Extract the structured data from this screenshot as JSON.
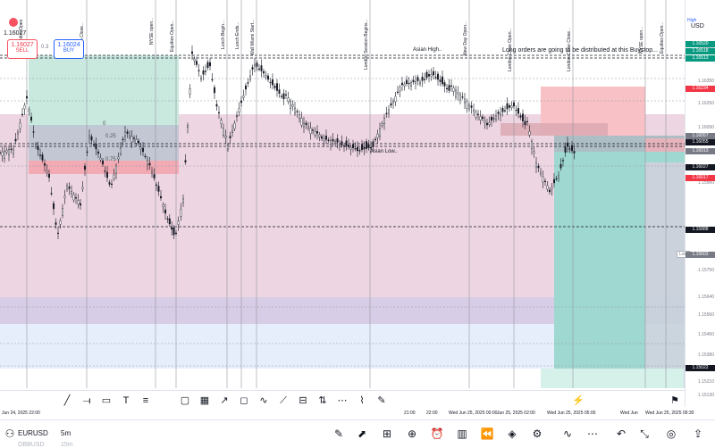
{
  "trade_widget": {
    "symbol_price": "1.16027",
    "sell_price": "1.16027",
    "sell_label": "SELL",
    "spread": "0.3",
    "buy_price": "1.16024",
    "buy_label": "BUY"
  },
  "price_axis": {
    "currency": "USD",
    "high_flag": "High",
    "low_flag": "Low",
    "ticks": [
      "1.16520",
      "1.16350",
      "1.16250",
      "1.16090",
      "1.15960",
      "1.15880",
      "1.15750",
      "1.15640",
      "1.15560",
      "1.15460",
      "1.15380",
      "1.15300",
      "1.15210",
      "1.15130"
    ],
    "tags": [
      {
        "value": "1.16520",
        "color": "#089981"
      },
      {
        "value": "1.16518",
        "color": "#089981"
      },
      {
        "value": "1.16513",
        "color": "#089981"
      },
      {
        "value": "1.16234",
        "color": "#f23645"
      },
      {
        "value": "1.16057",
        "color": "#787b86"
      },
      {
        "value": "1.16055",
        "color": "#131722"
      },
      {
        "value": "1.16027",
        "color": "#131722"
      },
      {
        "value": "1.16013",
        "color": "#787b86"
      },
      {
        "value": "1.16017",
        "color": "#f23645"
      },
      {
        "value": "1.15888",
        "color": "#131722"
      },
      {
        "value": "1.15603",
        "color": "#787b86"
      },
      {
        "value": "1.15022",
        "color": "#131722"
      }
    ]
  },
  "annotations": {
    "asian_high": "Asian High..",
    "asian_low": "Asian Low..",
    "long_orders": "Long orders are going to be distributed at this Buystop...",
    "fib_025": "0.25",
    "fib_075": "0.75",
    "fib_0": "0"
  },
  "session_labels": [
    "London Open",
    "London Close...",
    "NYSE open...",
    "Equities Open...",
    "Lunch Begin...",
    "Lunch Ends...",
    "Wall Miami Start...",
    "London Session Begins...",
    "New Day Open...",
    "London Close Open...",
    "London Close Close...",
    "NYSE open...",
    "Equities Open..."
  ],
  "time_axis": [
    "Jun 24, 2025  22:00",
    "21:00",
    "22:00",
    "Wed Jun 25, 2025  00:00",
    "Jun 25, 2025  02:00",
    "Wed Jun 25, 2025  05:00",
    "Wed Jun",
    "Wed Jun 25, 2025  09:30"
  ],
  "toolbar": {
    "symbol": "EURUSD",
    "symbol_sub": "OBBUSD",
    "timeframe": "5m",
    "timeframe_sub": "15m",
    "logo": "17"
  },
  "drawing_tools": [
    "trend-line",
    "horizontal-ray",
    "callout",
    "text",
    "brush",
    "rectangle",
    "grid",
    "arrow-line",
    "flag",
    "path",
    "polyline",
    "measure",
    "long-position",
    "ruler",
    "curve",
    "pencil"
  ],
  "bottom_icons": [
    "pen",
    "chart-type",
    "grid",
    "add",
    "alarm",
    "candles",
    "replay",
    "layers",
    "settings",
    "trend",
    "more",
    "undo",
    "redo",
    "fullscreen",
    "globe",
    "share"
  ]
}
